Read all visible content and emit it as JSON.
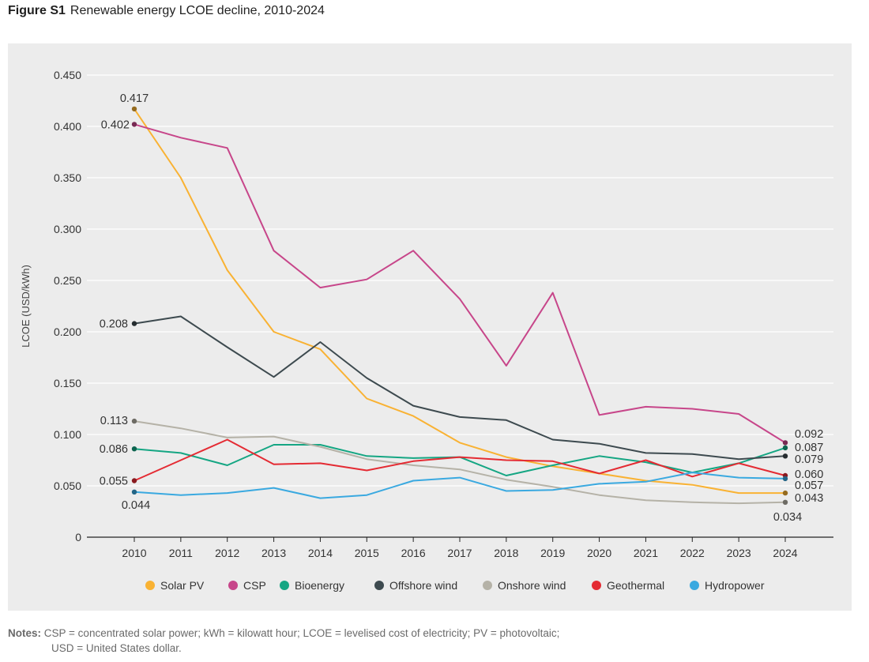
{
  "figure": {
    "label": "Figure S1",
    "title": "Renewable energy LCOE decline, 2010-2024"
  },
  "notes": {
    "label": "Notes:",
    "line1": "CSP = concentrated solar power; kWh = kilowatt hour; LCOE = levelised cost of electricity; PV = photovoltaic;",
    "line2": "USD = United States dollar."
  },
  "chart_data": {
    "type": "line",
    "title": "Renewable energy LCOE decline, 2010-2024",
    "xlabel": "",
    "ylabel": "LCOE (USD/kWh)",
    "ylim": [
      0,
      0.45
    ],
    "yticks": [
      0,
      0.05,
      0.1,
      0.15,
      0.2,
      0.25,
      0.3,
      0.35,
      0.4,
      0.45
    ],
    "ytick_labels": [
      "0",
      "0.050",
      "0.100",
      "0.150",
      "0.200",
      "0.250",
      "0.300",
      "0.350",
      "0.400",
      "0.450"
    ],
    "x": [
      2010,
      2011,
      2012,
      2013,
      2014,
      2015,
      2016,
      2017,
      2018,
      2019,
      2020,
      2021,
      2022,
      2023,
      2024
    ],
    "grid": true,
    "legend_position": "bottom",
    "series": [
      {
        "name": "Solar PV",
        "color": "#f9b233",
        "values": [
          0.417,
          0.35,
          0.26,
          0.2,
          0.183,
          0.135,
          0.118,
          0.092,
          0.078,
          0.069,
          0.062,
          0.055,
          0.051,
          0.043,
          0.043
        ],
        "start_label": "0.417",
        "end_label": "0.043"
      },
      {
        "name": "CSP",
        "color": "#c7468a",
        "values": [
          0.402,
          0.389,
          0.379,
          0.279,
          0.243,
          0.251,
          0.279,
          0.232,
          0.167,
          0.238,
          0.119,
          0.127,
          0.125,
          0.12,
          0.092
        ],
        "start_label": "0.402",
        "end_label": "0.092"
      },
      {
        "name": "Bioenergy",
        "color": "#15a683",
        "values": [
          0.086,
          0.082,
          0.07,
          0.09,
          0.09,
          0.079,
          0.077,
          0.078,
          0.06,
          0.07,
          0.079,
          0.073,
          0.063,
          0.072,
          0.087
        ],
        "start_label": "0.086",
        "end_label": "0.087"
      },
      {
        "name": "Offshore wind",
        "color": "#3d4a4f",
        "values": [
          0.208,
          0.215,
          0.185,
          0.156,
          0.19,
          0.155,
          0.128,
          0.117,
          0.114,
          0.095,
          0.091,
          0.082,
          0.081,
          0.076,
          0.079
        ],
        "start_label": "0.208",
        "end_label": "0.079"
      },
      {
        "name": "Onshore wind",
        "color": "#b5b2a7",
        "values": [
          0.113,
          0.106,
          0.097,
          0.098,
          0.088,
          0.076,
          0.07,
          0.066,
          0.056,
          0.049,
          0.041,
          0.036,
          0.034,
          0.033,
          0.034
        ],
        "start_label": "0.113",
        "end_label": "0.034"
      },
      {
        "name": "Geothermal",
        "color": "#e42b33",
        "values": [
          0.055,
          0.075,
          0.095,
          0.071,
          0.072,
          0.065,
          0.074,
          0.078,
          0.075,
          0.074,
          0.062,
          0.075,
          0.059,
          0.072,
          0.06
        ],
        "start_label": "0.055",
        "end_label": "0.060"
      },
      {
        "name": "Hydropower",
        "color": "#3aa9e0",
        "values": [
          0.044,
          0.041,
          0.043,
          0.048,
          0.038,
          0.041,
          0.055,
          0.058,
          0.045,
          0.046,
          0.052,
          0.054,
          0.063,
          0.058,
          0.057
        ],
        "start_label": "0.044",
        "end_label": "0.057"
      }
    ]
  }
}
